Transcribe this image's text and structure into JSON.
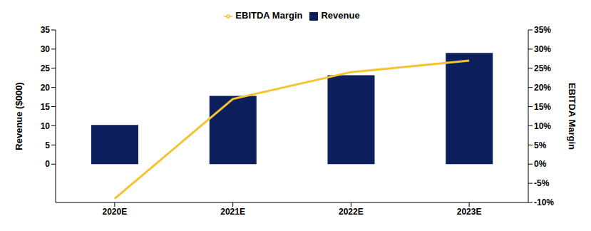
{
  "chart_data": {
    "type": "bar",
    "categories": [
      "2020E",
      "2021E",
      "2022E",
      "2023E"
    ],
    "series": [
      {
        "name": "Revenue",
        "type": "bar",
        "color": "#0c1f5c",
        "values": [
          10.2,
          17.8,
          23.2,
          29
        ]
      },
      {
        "name": "EBITDA Margin",
        "type": "line",
        "color": "#f5c330",
        "axis": "y2",
        "values": [
          -9,
          17,
          24,
          27
        ]
      }
    ],
    "y_label": "Revenue ($000)",
    "y2_label": "EBITDA Margin",
    "ylim": [
      -10,
      35
    ],
    "yticks": [
      0,
      5,
      10,
      15,
      20,
      25,
      30,
      35
    ],
    "y2lim": [
      -10,
      35
    ],
    "y2ticks": [
      {
        "value": -10,
        "label": "-10%"
      },
      {
        "value": -5,
        "label": "-5%"
      },
      {
        "value": 0,
        "label": "0%"
      },
      {
        "value": 5,
        "label": "5%"
      },
      {
        "value": 10,
        "label": "10%"
      },
      {
        "value": 15,
        "label": "15%"
      },
      {
        "value": 20,
        "label": "20%"
      },
      {
        "value": 25,
        "label": "25%"
      },
      {
        "value": 30,
        "label": "30%"
      },
      {
        "value": 35,
        "label": "35%"
      }
    ],
    "legend": "top"
  }
}
